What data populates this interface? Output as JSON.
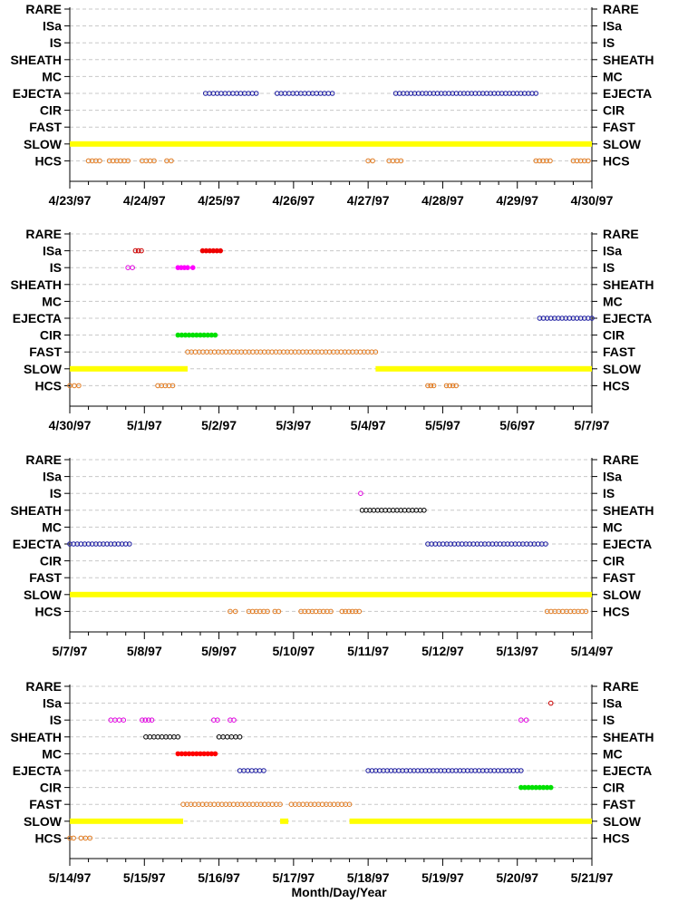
{
  "chart_data": {
    "type": "scatter",
    "xlabel": "Month/Day/Year",
    "categories": [
      "RARE",
      "ISa",
      "IS",
      "SHEATH",
      "MC",
      "EJECTA",
      "CIR",
      "FAST",
      "SLOW",
      "HCS"
    ],
    "colors": {
      "ISa": "#cc0000",
      "IS": "#e000e0",
      "SHEATH": "#000000",
      "MC": "#ff0000",
      "EJECTA": "#1a1aa0",
      "CIR": "#00e000",
      "FAST": "#e07a20",
      "SLOW": "#ffff00",
      "HCS": "#e07a20",
      "ISa_filled": "#ee0000",
      "IS_filled": "#ff00ff"
    },
    "panels": [
      {
        "x_ticks": [
          "4/23/97",
          "4/24/97",
          "4/25/97",
          "4/26/97",
          "4/27/97",
          "4/28/97",
          "4/29/97",
          "4/30/97"
        ],
        "xlim": [
          0,
          7
        ],
        "segments": [
          {
            "category": "EJECTA",
            "start": 1.82,
            "end": 2.5
          },
          {
            "category": "EJECTA",
            "start": 2.78,
            "end": 3.52
          },
          {
            "category": "EJECTA",
            "start": 4.37,
            "end": 6.25
          },
          {
            "category": "SLOW",
            "start": 0.0,
            "end": 7.0,
            "filled": true
          },
          {
            "category": "HCS",
            "start": 0.25,
            "end": 0.4
          },
          {
            "category": "HCS",
            "start": 0.53,
            "end": 0.78
          },
          {
            "category": "HCS",
            "start": 0.97,
            "end": 1.13
          },
          {
            "category": "HCS",
            "start": 1.3,
            "end": 1.36
          },
          {
            "category": "HCS",
            "start": 4.0,
            "end": 4.06
          },
          {
            "category": "HCS",
            "start": 4.28,
            "end": 4.44
          },
          {
            "category": "HCS",
            "start": 6.25,
            "end": 6.44
          },
          {
            "category": "HCS",
            "start": 6.75,
            "end": 6.95
          }
        ]
      },
      {
        "x_ticks": [
          "4/30/97",
          "5/1/97",
          "5/2/97",
          "5/3/97",
          "5/4/97",
          "5/5/97",
          "5/6/97",
          "5/7/97"
        ],
        "xlim": [
          0,
          7
        ],
        "segments": [
          {
            "category": "ISa",
            "start": 0.88,
            "end": 0.96
          },
          {
            "category": "ISa",
            "start": 1.78,
            "end": 2.02,
            "filled": true
          },
          {
            "category": "IS",
            "start": 0.78,
            "end": 0.84
          },
          {
            "category": "IS",
            "start": 1.45,
            "end": 1.58,
            "filled": true
          },
          {
            "category": "IS",
            "start": 1.65,
            "end": 1.65,
            "filled": true
          },
          {
            "category": "EJECTA",
            "start": 6.3,
            "end": 7.0
          },
          {
            "category": "CIR",
            "start": 1.45,
            "end": 1.95,
            "filled": true
          },
          {
            "category": "FAST",
            "start": 1.58,
            "end": 4.1
          },
          {
            "category": "SLOW",
            "start": 0.0,
            "end": 1.58,
            "filled": true
          },
          {
            "category": "SLOW",
            "start": 4.1,
            "end": 7.0,
            "filled": true
          },
          {
            "category": "HCS",
            "start": 0.0,
            "end": 0.12
          },
          {
            "category": "HCS",
            "start": 1.18,
            "end": 1.38
          },
          {
            "category": "HCS",
            "start": 4.8,
            "end": 4.88
          },
          {
            "category": "HCS",
            "start": 5.05,
            "end": 5.18
          }
        ]
      },
      {
        "x_ticks": [
          "5/7/97",
          "5/8/97",
          "5/9/97",
          "5/10/97",
          "5/11/97",
          "5/12/97",
          "5/13/97",
          "5/14/97"
        ],
        "xlim": [
          0,
          7
        ],
        "segments": [
          {
            "category": "IS",
            "start": 3.9,
            "end": 3.9
          },
          {
            "category": "SHEATH",
            "start": 3.92,
            "end": 4.75
          },
          {
            "category": "EJECTA",
            "start": 0.0,
            "end": 0.8
          },
          {
            "category": "EJECTA",
            "start": 4.8,
            "end": 6.38
          },
          {
            "category": "SLOW",
            "start": 0.0,
            "end": 7.0,
            "filled": true
          },
          {
            "category": "HCS",
            "start": 2.15,
            "end": 2.22
          },
          {
            "category": "HCS",
            "start": 2.4,
            "end": 2.65
          },
          {
            "category": "HCS",
            "start": 2.75,
            "end": 2.8
          },
          {
            "category": "HCS",
            "start": 3.1,
            "end": 3.5
          },
          {
            "category": "HCS",
            "start": 3.65,
            "end": 3.88
          },
          {
            "category": "HCS",
            "start": 6.4,
            "end": 6.92
          }
        ]
      },
      {
        "x_ticks": [
          "5/14/97",
          "5/15/97",
          "5/16/97",
          "5/17/97",
          "5/18/97",
          "5/19/97",
          "5/20/97",
          "5/21/97"
        ],
        "xlim": [
          0,
          7
        ],
        "segments": [
          {
            "category": "ISa",
            "start": 6.45,
            "end": 6.45
          },
          {
            "category": "IS",
            "start": 0.55,
            "end": 0.72
          },
          {
            "category": "IS",
            "start": 0.97,
            "end": 1.1
          },
          {
            "category": "IS",
            "start": 1.93,
            "end": 1.98
          },
          {
            "category": "IS",
            "start": 2.15,
            "end": 2.2
          },
          {
            "category": "IS",
            "start": 6.05,
            "end": 6.12
          },
          {
            "category": "SHEATH",
            "start": 1.02,
            "end": 1.45
          },
          {
            "category": "SHEATH",
            "start": 2.0,
            "end": 2.28
          },
          {
            "category": "MC",
            "start": 1.45,
            "end": 1.95,
            "filled": true
          },
          {
            "category": "EJECTA",
            "start": 2.28,
            "end": 2.6
          },
          {
            "category": "EJECTA",
            "start": 4.0,
            "end": 6.05
          },
          {
            "category": "CIR",
            "start": 6.05,
            "end": 6.45,
            "filled": true
          },
          {
            "category": "FAST",
            "start": 1.52,
            "end": 2.82
          },
          {
            "category": "FAST",
            "start": 2.97,
            "end": 3.75
          },
          {
            "category": "SLOW",
            "start": 0.0,
            "end": 1.52,
            "filled": true
          },
          {
            "category": "SLOW",
            "start": 2.82,
            "end": 2.93,
            "filled": true
          },
          {
            "category": "SLOW",
            "start": 3.75,
            "end": 7.0,
            "filled": true
          },
          {
            "category": "HCS",
            "start": 0.0,
            "end": 0.05
          },
          {
            "category": "HCS",
            "start": 0.15,
            "end": 0.27
          }
        ]
      }
    ]
  }
}
